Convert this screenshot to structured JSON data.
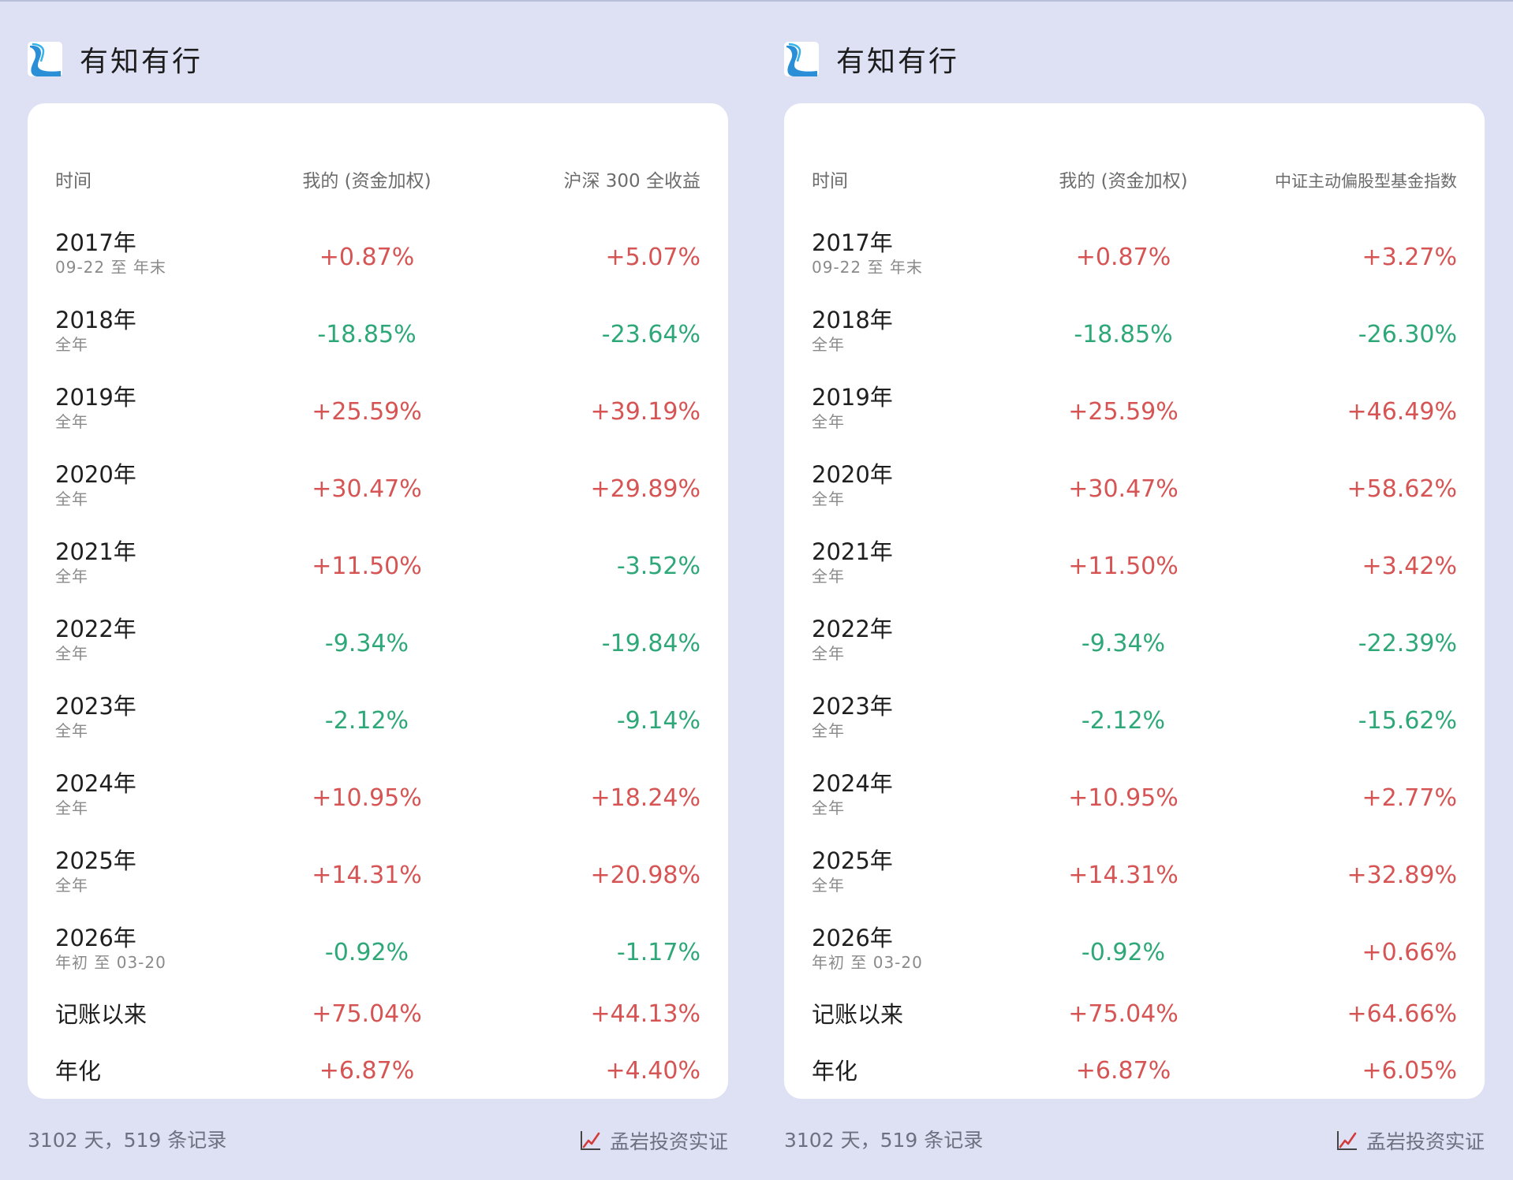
{
  "panels": [
    {
      "brand": "有知有行",
      "headers": {
        "time": "时间",
        "mine": "我的 (资金加权)",
        "benchmark": "沪深 300 全收益"
      },
      "rows": [
        {
          "year": "2017年",
          "range": "09-22 至 年末",
          "mine": "+0.87%",
          "bench": "+5.07%"
        },
        {
          "year": "2018年",
          "range": "全年",
          "mine": "-18.85%",
          "bench": "-23.64%"
        },
        {
          "year": "2019年",
          "range": "全年",
          "mine": "+25.59%",
          "bench": "+39.19%"
        },
        {
          "year": "2020年",
          "range": "全年",
          "mine": "+30.47%",
          "bench": "+29.89%"
        },
        {
          "year": "2021年",
          "range": "全年",
          "mine": "+11.50%",
          "bench": "-3.52%"
        },
        {
          "year": "2022年",
          "range": "全年",
          "mine": "-9.34%",
          "bench": "-19.84%"
        },
        {
          "year": "2023年",
          "range": "全年",
          "mine": "-2.12%",
          "bench": "-9.14%"
        },
        {
          "year": "2024年",
          "range": "全年",
          "mine": "+10.95%",
          "bench": "+18.24%"
        },
        {
          "year": "2025年",
          "range": "全年",
          "mine": "+14.31%",
          "bench": "+20.98%"
        },
        {
          "year": "2026年",
          "range": "年初 至 03-20",
          "mine": "-0.92%",
          "bench": "-1.17%"
        }
      ],
      "summary": [
        {
          "label": "记账以来",
          "mine": "+75.04%",
          "bench": "+44.13%"
        },
        {
          "label": "年化",
          "mine": "+6.87%",
          "bench": "+4.40%"
        }
      ],
      "footer": {
        "days": "3102 天，519 条记录",
        "attribution": "孟岩投资实证"
      }
    },
    {
      "brand": "有知有行",
      "headers": {
        "time": "时间",
        "mine": "我的 (资金加权)",
        "benchmark": "中证主动偏股型基金指数"
      },
      "rows": [
        {
          "year": "2017年",
          "range": "09-22 至 年末",
          "mine": "+0.87%",
          "bench": "+3.27%"
        },
        {
          "year": "2018年",
          "range": "全年",
          "mine": "-18.85%",
          "bench": "-26.30%"
        },
        {
          "year": "2019年",
          "range": "全年",
          "mine": "+25.59%",
          "bench": "+46.49%"
        },
        {
          "year": "2020年",
          "range": "全年",
          "mine": "+30.47%",
          "bench": "+58.62%"
        },
        {
          "year": "2021年",
          "range": "全年",
          "mine": "+11.50%",
          "bench": "+3.42%"
        },
        {
          "year": "2022年",
          "range": "全年",
          "mine": "-9.34%",
          "bench": "-22.39%"
        },
        {
          "year": "2023年",
          "range": "全年",
          "mine": "-2.12%",
          "bench": "-15.62%"
        },
        {
          "year": "2024年",
          "range": "全年",
          "mine": "+10.95%",
          "bench": "+2.77%"
        },
        {
          "year": "2025年",
          "range": "全年",
          "mine": "+14.31%",
          "bench": "+32.89%"
        },
        {
          "year": "2026年",
          "range": "年初 至 03-20",
          "mine": "-0.92%",
          "bench": "+0.66%"
        }
      ],
      "summary": [
        {
          "label": "记账以来",
          "mine": "+75.04%",
          "bench": "+64.66%"
        },
        {
          "label": "年化",
          "mine": "+6.87%",
          "bench": "+6.05%"
        }
      ],
      "footer": {
        "days": "3102 天，519 条记录",
        "attribution": "孟岩投资实证"
      }
    }
  ],
  "colors": {
    "positive": "#d65454",
    "negative": "#2ea879",
    "background": "#dde1f3",
    "card": "#ffffff"
  },
  "icons": {
    "brand_logo": "wave-logo-icon",
    "attribution": "chart-up-icon"
  }
}
